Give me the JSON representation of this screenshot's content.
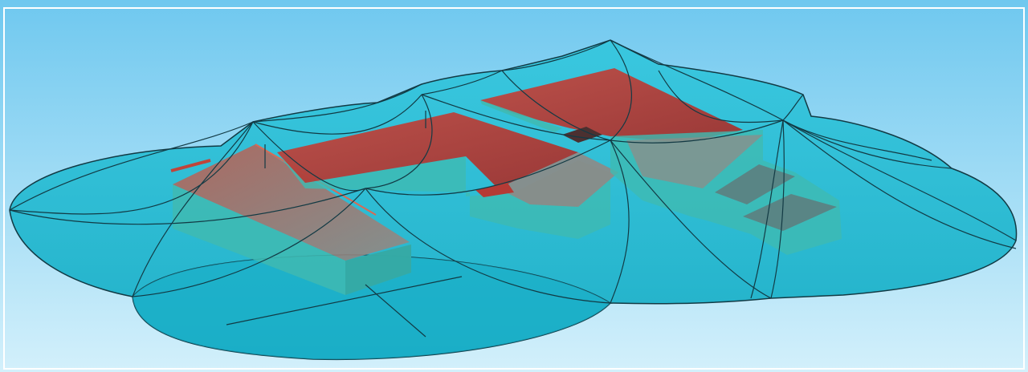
{
  "scene": {
    "kind": "3d-model-view",
    "colors": {
      "sky_top": "#7ccdf0",
      "sky_bottom": "#cfeefb",
      "dome_fill": "#19b8cf",
      "dome_fill_dark": "#0f9fb8",
      "dome_edge": "#123a44",
      "wall_fill": "#3fb9b0",
      "wall_shadow": "#2f9c98",
      "roof_red": "#b53a35",
      "roof_red_light": "#c96a5c",
      "roof_grey": "#8f8c88"
    }
  }
}
